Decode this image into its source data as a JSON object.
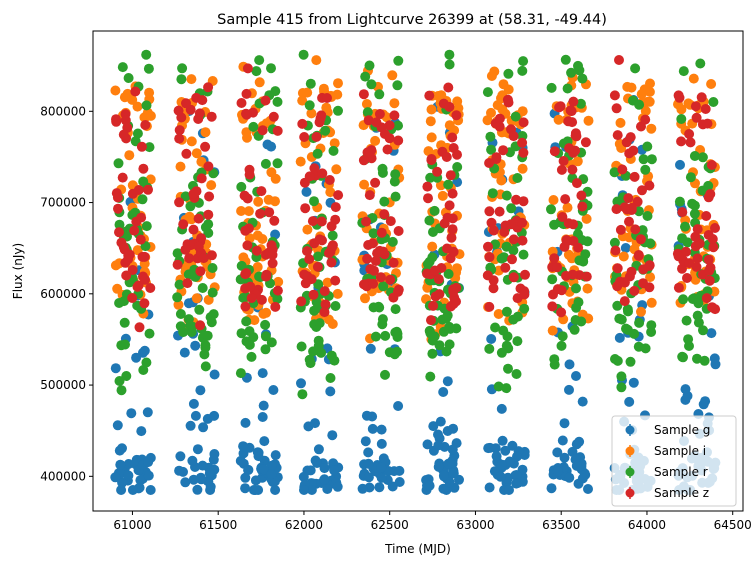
{
  "chart_data": {
    "type": "scatter",
    "title": "Sample 415 from Lightcurve 26399 at (58.31, -49.44)",
    "xlabel": "Time (MJD)",
    "ylabel": "Flux (nJy)",
    "xlim": [
      60770,
      64560
    ],
    "ylim": [
      362000,
      888000
    ],
    "xticks": [
      61000,
      61500,
      62000,
      62500,
      63000,
      63500,
      64000,
      64500
    ],
    "yticks": [
      400000,
      500000,
      600000,
      700000,
      800000
    ],
    "grid": false,
    "legend_position": "lower-right",
    "seasons": [
      {
        "start": 60900,
        "end": 61110
      },
      {
        "start": 61260,
        "end": 61480
      },
      {
        "start": 61630,
        "end": 61850
      },
      {
        "start": 61980,
        "end": 62200
      },
      {
        "start": 62340,
        "end": 62560
      },
      {
        "start": 62710,
        "end": 62910
      },
      {
        "start": 63070,
        "end": 63290
      },
      {
        "start": 63440,
        "end": 63660
      },
      {
        "start": 63810,
        "end": 64030
      },
      {
        "start": 64180,
        "end": 64400
      }
    ],
    "series": [
      {
        "name": "Sample g",
        "color": "#1f77b4",
        "clusters": [
          {
            "center": 405000,
            "spread": 13000,
            "weight": 9
          },
          {
            "center": 445000,
            "spread": 25000,
            "weight": 2
          },
          {
            "center": 510000,
            "spread": 40000,
            "weight": 2
          },
          {
            "center": 630000,
            "spread": 60000,
            "weight": 2
          },
          {
            "center": 760000,
            "spread": 40000,
            "weight": 1
          }
        ],
        "points_per_season": 46
      },
      {
        "name": "Sample i",
        "color": "#ff7f0e",
        "clusters": [
          {
            "center": 625000,
            "spread": 35000,
            "weight": 4
          },
          {
            "center": 730000,
            "spread": 40000,
            "weight": 2
          },
          {
            "center": 805000,
            "spread": 20000,
            "weight": 2
          }
        ],
        "points_per_season": 48
      },
      {
        "name": "Sample r",
        "color": "#2ca02c",
        "clusters": [
          {
            "center": 560000,
            "spread": 30000,
            "weight": 3
          },
          {
            "center": 650000,
            "spread": 35000,
            "weight": 3
          },
          {
            "center": 740000,
            "spread": 40000,
            "weight": 2
          },
          {
            "center": 840000,
            "spread": 15000,
            "weight": 1
          }
        ],
        "points_per_season": 48
      },
      {
        "name": "Sample z",
        "color": "#d62728",
        "clusters": [
          {
            "center": 630000,
            "spread": 30000,
            "weight": 4
          },
          {
            "center": 710000,
            "spread": 30000,
            "weight": 2
          },
          {
            "center": 790000,
            "spread": 25000,
            "weight": 2
          }
        ],
        "points_per_season": 42
      }
    ]
  }
}
